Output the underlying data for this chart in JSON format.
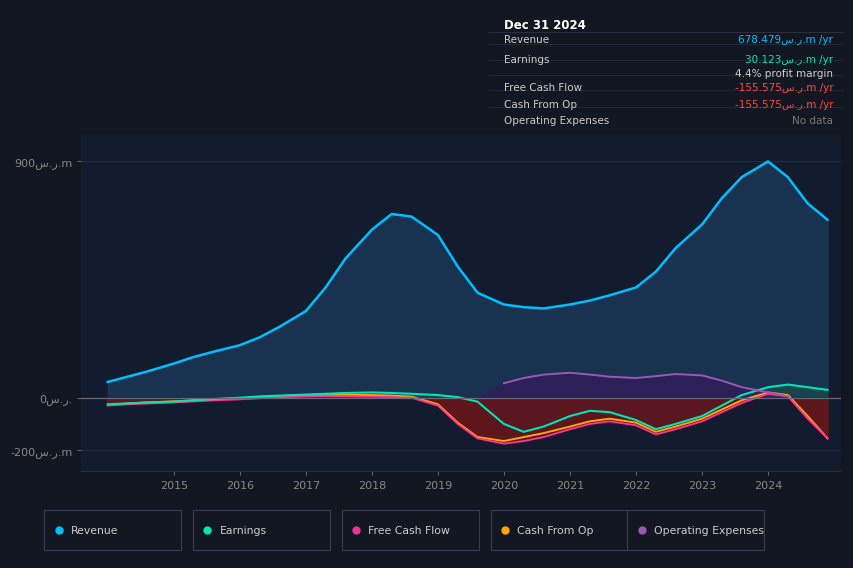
{
  "bg_color": "#131722",
  "plot_bg_color": "#131c2e",
  "title_box": {
    "title": "Dec 31 2024",
    "rows": [
      {
        "label": "Revenue",
        "value": "678.479س.ر.m /yr",
        "value_color": "#00bfff"
      },
      {
        "label": "Earnings",
        "value": "30.123س.ر.m /yr",
        "value_color": "#00e5b4"
      },
      {
        "label": "",
        "value": "4.4% profit margin",
        "value_color": "#cccccc"
      },
      {
        "label": "Free Cash Flow",
        "value": "-155.575س.ر.m /yr",
        "value_color": "#ff4444"
      },
      {
        "label": "Cash From Op",
        "value": "-155.575س.ر.m /yr",
        "value_color": "#ff4444"
      },
      {
        "label": "Operating Expenses",
        "value": "No data",
        "value_color": "#777777"
      }
    ]
  },
  "years": [
    2014.0,
    2014.3,
    2014.6,
    2015.0,
    2015.3,
    2015.6,
    2016.0,
    2016.3,
    2016.6,
    2017.0,
    2017.3,
    2017.6,
    2018.0,
    2018.3,
    2018.6,
    2019.0,
    2019.3,
    2019.6,
    2020.0,
    2020.3,
    2020.6,
    2021.0,
    2021.3,
    2021.6,
    2022.0,
    2022.3,
    2022.6,
    2023.0,
    2023.3,
    2023.6,
    2024.0,
    2024.3,
    2024.6,
    2024.9
  ],
  "revenue": [
    60,
    80,
    100,
    130,
    155,
    175,
    200,
    230,
    270,
    330,
    420,
    530,
    640,
    700,
    690,
    620,
    500,
    400,
    355,
    345,
    340,
    355,
    370,
    390,
    420,
    480,
    570,
    660,
    760,
    840,
    900,
    840,
    740,
    678
  ],
  "earnings": [
    -25,
    -22,
    -18,
    -15,
    -10,
    -5,
    0,
    5,
    8,
    12,
    15,
    18,
    20,
    18,
    15,
    10,
    2,
    -15,
    -100,
    -130,
    -110,
    -70,
    -50,
    -55,
    -85,
    -120,
    -100,
    -70,
    -30,
    10,
    40,
    50,
    40,
    30
  ],
  "free_cash_flow": [
    -30,
    -25,
    -22,
    -18,
    -14,
    -10,
    -6,
    -2,
    2,
    5,
    6,
    5,
    4,
    2,
    0,
    -30,
    -100,
    -155,
    -175,
    -165,
    -150,
    -120,
    -100,
    -90,
    -105,
    -140,
    -120,
    -90,
    -55,
    -20,
    15,
    5,
    -80,
    -155
  ],
  "cash_from_op": [
    -28,
    -22,
    -18,
    -14,
    -10,
    -6,
    -2,
    2,
    5,
    8,
    10,
    11,
    10,
    8,
    4,
    -25,
    -95,
    -150,
    -165,
    -150,
    -135,
    -110,
    -90,
    -80,
    -95,
    -130,
    -110,
    -80,
    -45,
    -10,
    20,
    10,
    -70,
    -155
  ],
  "op_expenses": [
    0,
    0,
    0,
    0,
    0,
    0,
    0,
    0,
    0,
    0,
    0,
    0,
    0,
    0,
    0,
    0,
    0,
    0,
    55,
    75,
    88,
    95,
    88,
    80,
    75,
    82,
    90,
    85,
    65,
    40,
    20,
    5,
    0,
    0
  ],
  "colors": {
    "revenue_line": "#00bfff",
    "revenue_fill": "#1a3a5c",
    "earnings_line": "#00e5b4",
    "earnings_fill_pos": "#1a5a4a",
    "earnings_fill_neg": "#5a1a2a",
    "fcf_line": "#ff3399",
    "fcf_fill": "#7a1020",
    "cop_line": "#ffa500",
    "cop_fill": "#3a2800",
    "opex_line": "#9b59b6",
    "opex_fill": "#3a1560",
    "grid_color": "#2a2d3e",
    "zero_line": "#666677",
    "text_color": "#cccccc",
    "axis_color": "#888888",
    "legend_border": "#3a3d50"
  },
  "ylim": [
    -280,
    1000
  ],
  "yticks": [
    -200,
    0,
    900
  ],
  "ytick_labels": [
    "-200س.ر.m",
    "0س.ر.",
    "900س.ر.m"
  ],
  "xlim": [
    2013.6,
    2025.1
  ],
  "xticks": [
    2015,
    2016,
    2017,
    2018,
    2019,
    2020,
    2021,
    2022,
    2023,
    2024
  ],
  "legend_items": [
    {
      "label": "Revenue",
      "color": "#00bfff"
    },
    {
      "label": "Earnings",
      "color": "#00e5b4"
    },
    {
      "label": "Free Cash Flow",
      "color": "#ee3399"
    },
    {
      "label": "Cash From Op",
      "color": "#ffa500"
    },
    {
      "label": "Operating Expenses",
      "color": "#9b59b6"
    }
  ]
}
